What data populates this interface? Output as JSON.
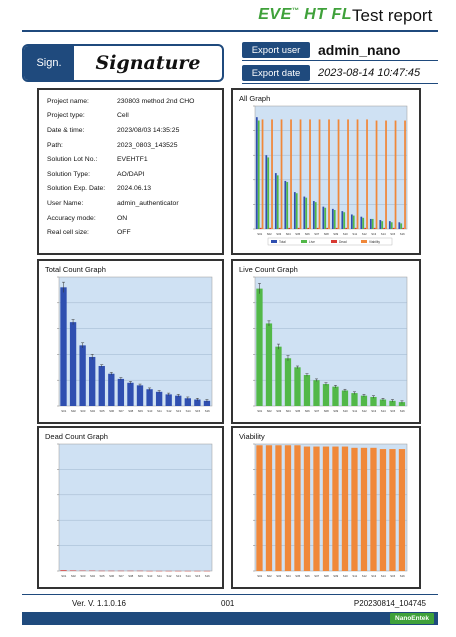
{
  "header": {
    "brand": "EVE",
    "brand_tm": "™",
    "brand_model": " HT FL",
    "title": "Test report"
  },
  "signature": {
    "label": "Sign.",
    "value": "Signature"
  },
  "export": {
    "user_label": "Export user",
    "user_value": "admin_nano",
    "date_label": "Export date",
    "date_value": "2023-08-14 10:47:45"
  },
  "info": [
    {
      "key": "Project name:",
      "value": "230803 method 2nd CHO"
    },
    {
      "key": "Project type:",
      "value": "Cell"
    },
    {
      "key": "Date & time:",
      "value": "2023/08/03 14:35:25"
    },
    {
      "key": "Path:",
      "value": "2023_0803_143525"
    },
    {
      "key": "Solution Lot No.:",
      "value": "EVEHTF1"
    },
    {
      "key": "Solution Type:",
      "value": "AO/DAPI"
    },
    {
      "key": "Solution Exp. Date:",
      "value": "2024.06.13"
    },
    {
      "key": "User Name:",
      "value": "admin_authenticator"
    },
    {
      "key": "Accuracy mode:",
      "value": "ON"
    },
    {
      "key": "Real cell size:",
      "value": "OFF"
    }
  ],
  "panels": {
    "all": "All Graph",
    "total": "Total Count Graph",
    "live": "Live Count Graph",
    "dead": "Dead Count Graph",
    "viability": "Viability"
  },
  "colors": {
    "total": "#2f4fb0",
    "live": "#52b848",
    "dead": "#d83a32",
    "viability": "#f0883a",
    "plot_bg": "#cfe1f3",
    "brand_blue": "#1f4a7d",
    "brand_green": "#3fa13a"
  },
  "chart_data": [
    {
      "type": "bar",
      "panel": "all",
      "categories": [
        "S01",
        "S02",
        "S03",
        "S04",
        "S05",
        "S06",
        "S07",
        "S08",
        "S09",
        "S10",
        "S11",
        "S12",
        "S13",
        "S14",
        "S15",
        "S16"
      ],
      "series": [
        {
          "name": "Total",
          "values": [
            100,
            66,
            50,
            43,
            33,
            29,
            25,
            20,
            18,
            16,
            13,
            11,
            9,
            8,
            7,
            6
          ]
        },
        {
          "name": "Live",
          "values": [
            97,
            64,
            48,
            42,
            32,
            28,
            24,
            19,
            17,
            15,
            12,
            10,
            9,
            7,
            6,
            5
          ]
        },
        {
          "name": "Dead",
          "values": [
            1,
            1,
            1,
            1,
            1,
            1,
            1,
            1,
            1,
            1,
            1,
            1,
            1,
            1,
            1,
            1
          ]
        },
        {
          "name": "Viability",
          "values": [
            98,
            98,
            98,
            98,
            98,
            98,
            98,
            98,
            98,
            98,
            98,
            98,
            97,
            97,
            97,
            97
          ]
        }
      ],
      "ylim": [
        0,
        110
      ],
      "grid": true,
      "legend": "bottom"
    },
    {
      "type": "bar",
      "panel": "total",
      "categories": [
        "S01",
        "S02",
        "S03",
        "S04",
        "S05",
        "S06",
        "S07",
        "S08",
        "S09",
        "S10",
        "S11",
        "S12",
        "S13",
        "S14",
        "S15",
        "S16"
      ],
      "values": [
        92,
        65,
        47,
        38,
        31,
        25,
        21,
        18,
        16,
        13,
        11,
        9,
        8,
        6,
        5,
        4
      ],
      "errors": [
        4,
        2,
        2,
        2,
        1,
        1,
        1,
        1,
        1,
        1,
        1,
        1,
        1,
        1,
        1,
        1
      ],
      "ylim": [
        0,
        100
      ],
      "grid": true
    },
    {
      "type": "bar",
      "panel": "live",
      "categories": [
        "S01",
        "S02",
        "S03",
        "S04",
        "S05",
        "S06",
        "S07",
        "S08",
        "S09",
        "S10",
        "S11",
        "S12",
        "S13",
        "S14",
        "S15",
        "S16"
      ],
      "values": [
        91,
        64,
        46,
        37,
        30,
        24,
        20,
        17,
        15,
        12,
        10,
        8,
        7,
        5,
        4,
        3
      ],
      "errors": [
        4,
        2,
        2,
        2,
        1,
        1,
        1,
        1,
        1,
        1,
        1,
        1,
        1,
        1,
        1,
        1
      ],
      "ylim": [
        0,
        100
      ],
      "grid": true
    },
    {
      "type": "bar",
      "panel": "dead",
      "categories": [
        "S01",
        "S02",
        "S03",
        "S04",
        "S05",
        "S06",
        "S07",
        "S08",
        "S09",
        "S10",
        "S11",
        "S12",
        "S13",
        "S14",
        "S15",
        "S16"
      ],
      "values": [
        0.6,
        0.4,
        0.3,
        0.3,
        0.2,
        0.2,
        0.2,
        0.2,
        0.2,
        0.1,
        0.1,
        0.1,
        0.1,
        0.1,
        0.1,
        0.1
      ],
      "ylim": [
        0,
        100
      ],
      "grid": true
    },
    {
      "type": "bar",
      "panel": "viability",
      "categories": [
        "S01",
        "S02",
        "S03",
        "S04",
        "S05",
        "S06",
        "S07",
        "S08",
        "S09",
        "S10",
        "S11",
        "S12",
        "S13",
        "S14",
        "S15",
        "S16"
      ],
      "values": [
        99,
        99,
        99,
        99,
        99,
        98,
        98,
        98,
        98,
        98,
        97,
        97,
        97,
        96,
        96,
        96
      ],
      "ylim": [
        0,
        100
      ],
      "grid": true
    }
  ],
  "footer": {
    "version": "Ver. V. 1.1.0.16",
    "page": "001",
    "report_id": "P20230814_104745",
    "logo": "NanoEntek"
  }
}
